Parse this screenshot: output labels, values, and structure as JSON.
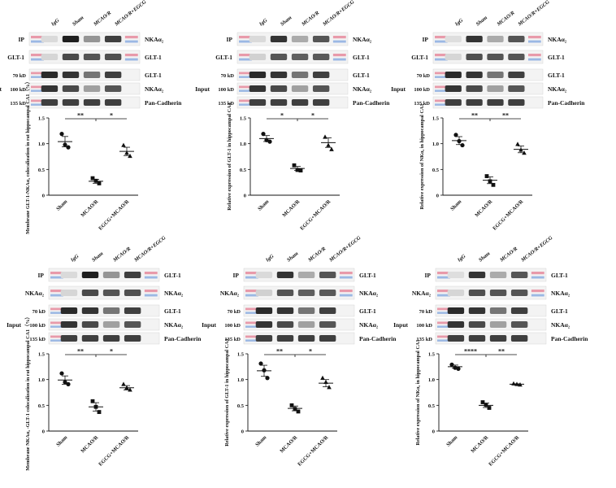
{
  "lanes": [
    "IgG",
    "Sham",
    "MCAO/R",
    "MCAO/R+EGCG"
  ],
  "row_labels": {
    "ip": "IP",
    "input": "Input"
  },
  "mw": {
    "k70": "70 kD",
    "k100": "100 kD",
    "k135": "135 kD"
  },
  "bands": {
    "nka": "NKAα₂",
    "glt": "GLT-1",
    "pan": "Pan-Cadherin",
    "nka_row": "NKAα₂",
    "glt_row": "GLT-1"
  },
  "panels": [
    {
      "left_labels": [
        "IP",
        "GLT-1"
      ],
      "right_labels": [
        "NKAα₂",
        "GLT-1"
      ],
      "input_labels": [
        "GLT-1",
        "NKAα₂",
        "Pan-Cadherin"
      ],
      "chart": {
        "ylabel": "Membrane GLT-1-NKAα₂ colocalization in rat hippocampal CA1（%）",
        "categories": [
          "Sham",
          "MCAO/R",
          "EGCG+MCAO/R"
        ],
        "ylim": [
          0,
          1.5
        ],
        "yticks": [
          "0",
          "0.5",
          "1.0",
          "1.5"
        ],
        "means": [
          1.04,
          0.27,
          0.85
        ],
        "points": [
          [
            1.19,
            0.98,
            0.93
          ],
          [
            0.33,
            0.28,
            0.23
          ],
          [
            0.97,
            0.82,
            0.76
          ]
        ],
        "sig": [
          "**",
          "*"
        ]
      }
    },
    {
      "left_labels": [
        "IP",
        "GLT-1"
      ],
      "right_labels": [
        "NKAα₂",
        "GLT-1"
      ],
      "input_labels": [
        "GLT-1",
        "NKAα₂",
        "Pan-Cadherin"
      ],
      "chart": {
        "ylabel": "Relative expression of GLT-1 in hippocampal CA1",
        "categories": [
          "Sham",
          "MCAO/R",
          "EGCG+MCAO/R"
        ],
        "ylim": [
          0,
          1.5
        ],
        "yticks": [
          "0",
          "0.5",
          "1.0",
          "1.5"
        ],
        "means": [
          1.1,
          0.52,
          1.02
        ],
        "points": [
          [
            1.19,
            1.07,
            1.04
          ],
          [
            0.58,
            0.49,
            0.48
          ],
          [
            1.13,
            0.97,
            0.89
          ]
        ],
        "sig": [
          "*",
          "*"
        ]
      }
    },
    {
      "left_labels": [
        "IP",
        "GLT-1"
      ],
      "right_labels": [
        "NKAα₂",
        "GLT-1"
      ],
      "input_labels": [
        "GLT-1",
        "NKAα₂",
        "Pan-Cadherin"
      ],
      "chart": {
        "ylabel": "Relative expression of NKα₂ in hippocampal CA1",
        "categories": [
          "Sham",
          "MCAO/R",
          "EGCG+MCAO/R"
        ],
        "ylim": [
          0,
          1.5
        ],
        "yticks": [
          "0",
          "0.5",
          "1.0",
          "1.5"
        ],
        "means": [
          1.06,
          0.29,
          0.89
        ],
        "points": [
          [
            1.17,
            1.05,
            0.97
          ],
          [
            0.37,
            0.27,
            0.2
          ],
          [
            0.99,
            0.88,
            0.82
          ]
        ],
        "sig": [
          "**",
          "**"
        ]
      }
    },
    {
      "left_labels": [
        "IP",
        "NKAα₂"
      ],
      "right_labels": [
        "GLT-1",
        "NKAα₂"
      ],
      "input_labels": [
        "GLT-1",
        "NKAα₂",
        "Pan-Cadherin"
      ],
      "chart": {
        "ylabel": "Membrane NKAα₂ -GLT-1 colocalization in rat hippocampal CA1（%）",
        "categories": [
          "Sham",
          "MCAO/R",
          "EGCG+MCAO/R"
        ],
        "ylim": [
          0,
          1.5
        ],
        "yticks": [
          "0",
          "0.5",
          "1.0",
          "1.5"
        ],
        "means": [
          0.99,
          0.47,
          0.84
        ],
        "points": [
          [
            1.12,
            0.95,
            0.91
          ],
          [
            0.58,
            0.47,
            0.37
          ],
          [
            0.91,
            0.84,
            0.8
          ]
        ],
        "sig": [
          "**",
          "*"
        ]
      }
    },
    {
      "left_labels": [
        "IP",
        "NKAα₂"
      ],
      "right_labels": [
        "GLT-1",
        "NKAα₂"
      ],
      "input_labels": [
        "GLT-1",
        "NKAα₂",
        "Pan-Cadherin"
      ],
      "chart": {
        "ylabel": "Relative expression of GLT-1 in hippocampal CA1",
        "categories": [
          "Sham",
          "MCAO/R",
          "EGCG+MCAO/R"
        ],
        "ylim": [
          0,
          1.5
        ],
        "yticks": [
          "0",
          "0.5",
          "1.0",
          "1.5"
        ],
        "means": [
          1.17,
          0.44,
          0.93
        ],
        "points": [
          [
            1.31,
            1.18,
            1.03
          ],
          [
            0.5,
            0.43,
            0.38
          ],
          [
            1.03,
            0.95,
            0.85
          ]
        ],
        "sig": [
          "**",
          "*"
        ]
      }
    },
    {
      "left_labels": [
        "IP",
        "NKAα₂"
      ],
      "right_labels": [
        "GLT-1",
        "NKAα₂"
      ],
      "input_labels": [
        "GLT-1",
        "NKAα₂",
        "Pan-Cadherin"
      ],
      "chart": {
        "ylabel": "Relative expression of NKα₂ in hippocampal CA1",
        "categories": [
          "Sham",
          "MCAO/R",
          "EGCG+MCAO/R"
        ],
        "ylim": [
          0,
          1.5
        ],
        "yticks": [
          "0",
          "0.5",
          "1.0",
          "1.5"
        ],
        "means": [
          1.25,
          0.5,
          0.91
        ],
        "points": [
          [
            1.29,
            1.23,
            1.21
          ],
          [
            0.56,
            0.51,
            0.45
          ],
          [
            0.92,
            0.91,
            0.9
          ]
        ],
        "sig": [
          "****",
          "**"
        ]
      }
    }
  ]
}
